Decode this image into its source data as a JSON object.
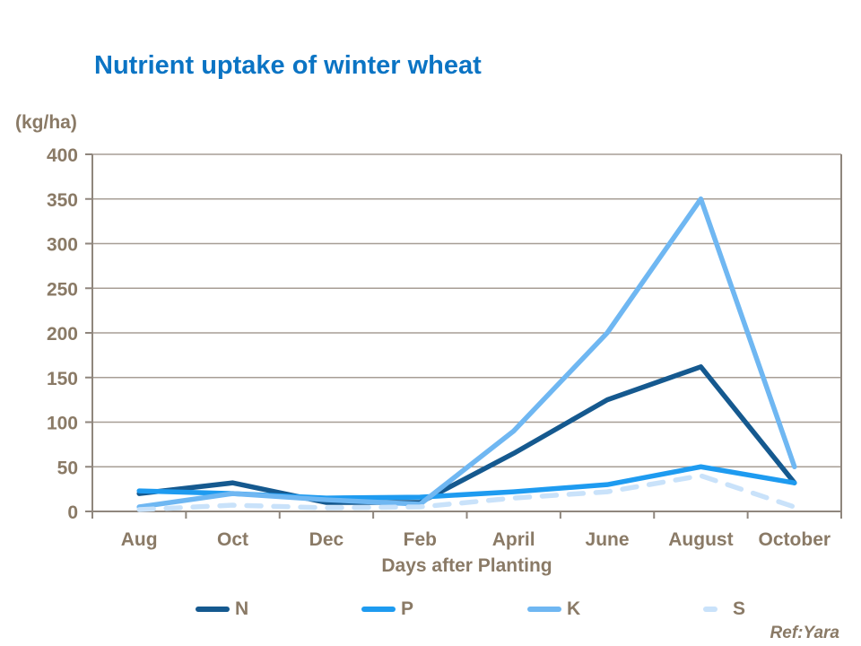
{
  "reference": "Ref:Yara",
  "colors": {
    "title": "#0b74c4",
    "axis_text": "#8a7a66",
    "gridline": "#a79e95",
    "axis_line": "#8f867d",
    "background": "#ffffff"
  },
  "chart_data": {
    "type": "line",
    "title": "Nutrient uptake of winter wheat",
    "ylabel": "(kg/ha)",
    "xlabel": "Days after Planting",
    "categories": [
      "Aug",
      "Oct",
      "Dec",
      "Feb",
      "April",
      "June",
      "August",
      "October"
    ],
    "ylim": [
      0,
      400
    ],
    "ytick_step": 50,
    "grid": true,
    "legend_position": "bottom",
    "series": [
      {
        "name": "N",
        "color": "#15598f",
        "dash": false,
        "values": [
          20,
          32,
          10,
          10,
          65,
          125,
          162,
          32
        ]
      },
      {
        "name": "P",
        "color": "#1e9bf0",
        "dash": false,
        "values": [
          23,
          20,
          15,
          16,
          22,
          30,
          50,
          32
        ]
      },
      {
        "name": "K",
        "color": "#6fb7f2",
        "dash": false,
        "values": [
          5,
          20,
          13,
          8,
          90,
          200,
          350,
          50
        ]
      },
      {
        "name": "S",
        "color": "#c9e2fa",
        "dash": true,
        "values": [
          2,
          7,
          4,
          5,
          15,
          22,
          40,
          5
        ]
      }
    ]
  }
}
